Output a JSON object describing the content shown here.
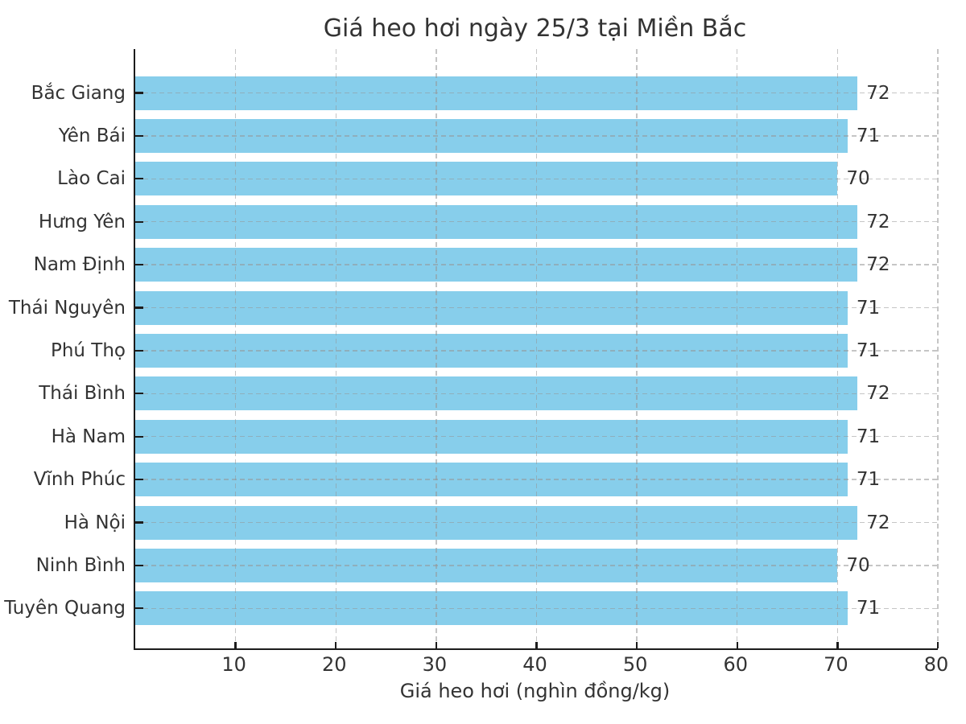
{
  "chart_data": {
    "type": "bar",
    "orientation": "horizontal",
    "title": "Giá heo hơi ngày 25/3 tại Miền Bắc",
    "xlabel": "Giá heo hơi (nghìn đồng/kg)",
    "ylabel": "",
    "categories": [
      "Bắc Giang",
      "Yên Bái",
      "Lào Cai",
      "Hưng Yên",
      "Nam Định",
      "Thái Nguyên",
      "Phú Thọ",
      "Thái Bình",
      "Hà Nam",
      "Vĩnh Phúc",
      "Hà Nội",
      "Ninh Bình",
      "Tuyên Quang"
    ],
    "values": [
      72,
      71,
      70,
      72,
      72,
      71,
      71,
      72,
      71,
      71,
      72,
      70,
      71
    ],
    "value_labels": [
      "72",
      "71",
      "70",
      "72",
      "72",
      "71",
      "71",
      "72",
      "71",
      "71",
      "72",
      "70",
      "71"
    ],
    "xlim": [
      0,
      80
    ],
    "xticks": [
      10,
      20,
      30,
      40,
      50,
      60,
      70,
      80
    ],
    "grid": "both-dashed",
    "legend": "none",
    "bar_color": "#87CEEB",
    "text_color": "#333333",
    "spine_color": "#1c1c1c",
    "grid_color": "#c8c8c8",
    "background_color": "#ffffff"
  }
}
